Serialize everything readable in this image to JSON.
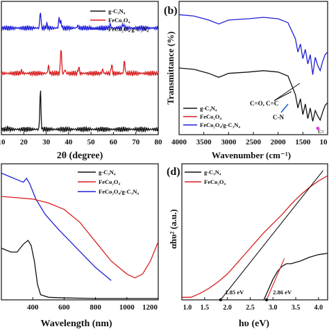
{
  "chart_data": [
    {
      "panel": "a",
      "type": "line",
      "xlabel": "2θ (degree)",
      "ylabel": "",
      "xlim": [
        10,
        80
      ],
      "xticks": [
        "20",
        "30",
        "40",
        "50",
        "60",
        "70",
        "80"
      ],
      "legend": [
        "g-C₃N₄",
        "FeCo₂O₄",
        "FeCo₂O₄/g-C₃N₄"
      ],
      "legend_placement": "top-right",
      "series": [
        {
          "name": "FeCo₂O₄/g-C₃N₄",
          "color": "#1f1fd8",
          "offset": 0.8,
          "peaks": [
            [
              27.4,
              0.13
            ],
            [
              30.3,
              0.03
            ],
            [
              35.8,
              0.08
            ],
            [
              36.6,
              0.05
            ],
            [
              44.0,
              0.02
            ],
            [
              58.5,
              0.03
            ],
            [
              64.3,
              0.03
            ]
          ]
        },
        {
          "name": "FeCo₂O₄",
          "color": "#d81f1f",
          "offset": 0.46,
          "peaks": [
            [
              18.9,
              0.02
            ],
            [
              31.0,
              0.06
            ],
            [
              36.6,
              0.2
            ],
            [
              38.4,
              0.03
            ],
            [
              44.5,
              0.05
            ],
            [
              55.2,
              0.03
            ],
            [
              59.2,
              0.07
            ],
            [
              64.9,
              0.1
            ]
          ]
        },
        {
          "name": "g-C₃N₄",
          "color": "#111111",
          "offset": 0.04,
          "peaks": [
            [
              27.4,
              0.3
            ],
            [
              13.0,
              0.01
            ]
          ]
        }
      ]
    },
    {
      "panel": "b",
      "type": "line",
      "xlabel": "Wavenumber (cm⁻¹)",
      "ylabel": "Transmittance (%)",
      "xlim": [
        4000,
        1000
      ],
      "xticks": [
        "4000",
        "3500",
        "3000",
        "2500",
        "2000",
        "1500",
        "10"
      ],
      "legend": [
        "g-C₃N₄",
        "FeCo₂O₄",
        "FeCo₂O₄/g-C₃N₄"
      ],
      "legend_placement": "bottom-left",
      "annotations": [
        "C-N",
        "C=O, C=C",
        "C="
      ],
      "series": [
        {
          "name": "FeCo₂O₄/g-C₃N₄",
          "color": "#1f1fd8",
          "x": [
            4000,
            3700,
            3400,
            3200,
            3000,
            2600,
            2300,
            2000,
            1800,
            1650,
            1600,
            1550,
            1500,
            1450,
            1400,
            1350,
            1300,
            1250,
            1200,
            1150,
            1100,
            1050,
            1000
          ],
          "y": [
            0.9,
            0.89,
            0.86,
            0.83,
            0.86,
            0.87,
            0.88,
            0.87,
            0.84,
            0.72,
            0.62,
            0.68,
            0.57,
            0.64,
            0.53,
            0.6,
            0.45,
            0.58,
            0.52,
            0.48,
            0.55,
            0.6,
            0.62
          ]
        },
        {
          "name": "g-C₃N₄",
          "color": "#111111",
          "x": [
            4000,
            3700,
            3400,
            3200,
            3000,
            2600,
            2300,
            2000,
            1800,
            1650,
            1600,
            1550,
            1500,
            1450,
            1400,
            1350,
            1300,
            1250,
            1200,
            1150,
            1100,
            1050,
            1000
          ],
          "y": [
            0.5,
            0.49,
            0.46,
            0.43,
            0.46,
            0.47,
            0.48,
            0.47,
            0.44,
            0.3,
            0.2,
            0.27,
            0.15,
            0.23,
            0.12,
            0.2,
            0.1,
            0.18,
            0.14,
            0.11,
            0.17,
            0.22,
            0.24
          ]
        }
      ]
    },
    {
      "panel": "c",
      "type": "line",
      "xlabel": "Wavelength (nm)",
      "ylabel": "",
      "xlim": [
        200,
        1200
      ],
      "xticks": [
        "400",
        "600",
        "800",
        "1000",
        "1200"
      ],
      "legend": [
        "g-C₃N₄",
        "FeCo₂O₄",
        "FeCo₂O₄/g-C₃N₄"
      ],
      "legend_placement": "top-right",
      "series": [
        {
          "name": "FeCo₂O₄/g-C₃N₄",
          "color": "#1f1fd8",
          "x": [
            200,
            260,
            300,
            340,
            360,
            380,
            420,
            480,
            560,
            640,
            720,
            800,
            900
          ],
          "y": [
            0.98,
            0.95,
            0.93,
            0.91,
            0.94,
            0.9,
            0.78,
            0.66,
            0.55,
            0.45,
            0.35,
            0.25,
            0.15
          ]
        },
        {
          "name": "FeCo₂O₄",
          "color": "#d81f1f",
          "x": [
            200,
            300,
            400,
            500,
            600,
            700,
            800,
            900,
            1000,
            1050,
            1100,
            1150,
            1200
          ],
          "y": [
            0.8,
            0.79,
            0.78,
            0.75,
            0.7,
            0.6,
            0.45,
            0.3,
            0.2,
            0.17,
            0.2,
            0.3,
            0.45
          ]
        },
        {
          "name": "g-C₃N₄",
          "color": "#111111",
          "x": [
            200,
            260,
            300,
            340,
            370,
            390,
            410,
            430,
            450,
            500,
            600,
            800,
            1200
          ],
          "y": [
            0.4,
            0.37,
            0.37,
            0.43,
            0.46,
            0.42,
            0.3,
            0.12,
            0.04,
            0.02,
            0.015,
            0.01,
            0.01
          ]
        }
      ]
    },
    {
      "panel": "d",
      "type": "line",
      "xlabel": "hυ (eV)",
      "ylabel": "αhυ² (a.u.)",
      "xlim": [
        1.0,
        4.2
      ],
      "xticks": [
        "1.0",
        "1.5",
        "2.0",
        "2.5",
        "3.0",
        "3.5",
        "4.0"
      ],
      "legend": [
        "g-C₃N₄",
        "FeCo₂O₄"
      ],
      "legend_placement": "top-left",
      "annotations": [
        "1.85 eV",
        "2.86 eV"
      ],
      "series": [
        {
          "name": "FeCo₂O₄",
          "color": "#d81f1f",
          "x": [
            1.0,
            1.2,
            1.4,
            1.6,
            1.8,
            2.0,
            2.2,
            2.4,
            2.6,
            2.8,
            3.0,
            3.2,
            3.4,
            3.6,
            3.8,
            4.0,
            4.2
          ],
          "y": [
            0.02,
            0.02,
            0.05,
            0.09,
            0.14,
            0.2,
            0.28,
            0.36,
            0.44,
            0.52,
            0.59,
            0.66,
            0.74,
            0.81,
            0.87,
            0.92,
            0.96
          ]
        },
        {
          "name": "g-C₃N₄",
          "color": "#111111",
          "x": [
            2.8,
            2.9,
            3.0,
            3.1,
            3.2,
            3.3,
            3.4,
            3.6,
            3.8,
            4.0,
            4.2
          ],
          "y": [
            0.0,
            0.08,
            0.16,
            0.22,
            0.26,
            0.28,
            0.28,
            0.3,
            0.33,
            0.35,
            0.36
          ]
        }
      ]
    }
  ],
  "panel_labels": [
    "(b)",
    "(d)"
  ],
  "a_xtick_first": "10",
  "c_xtick_label_extra": "",
  "tangents": [
    {
      "panel": "d",
      "from": [
        1.85,
        0.0
      ],
      "to": [
        4.1,
        1.0
      ],
      "color": "#111111"
    },
    {
      "panel": "d",
      "from": [
        2.86,
        0.0
      ],
      "to": [
        3.25,
        0.32
      ],
      "color": "#d81f1f"
    }
  ]
}
